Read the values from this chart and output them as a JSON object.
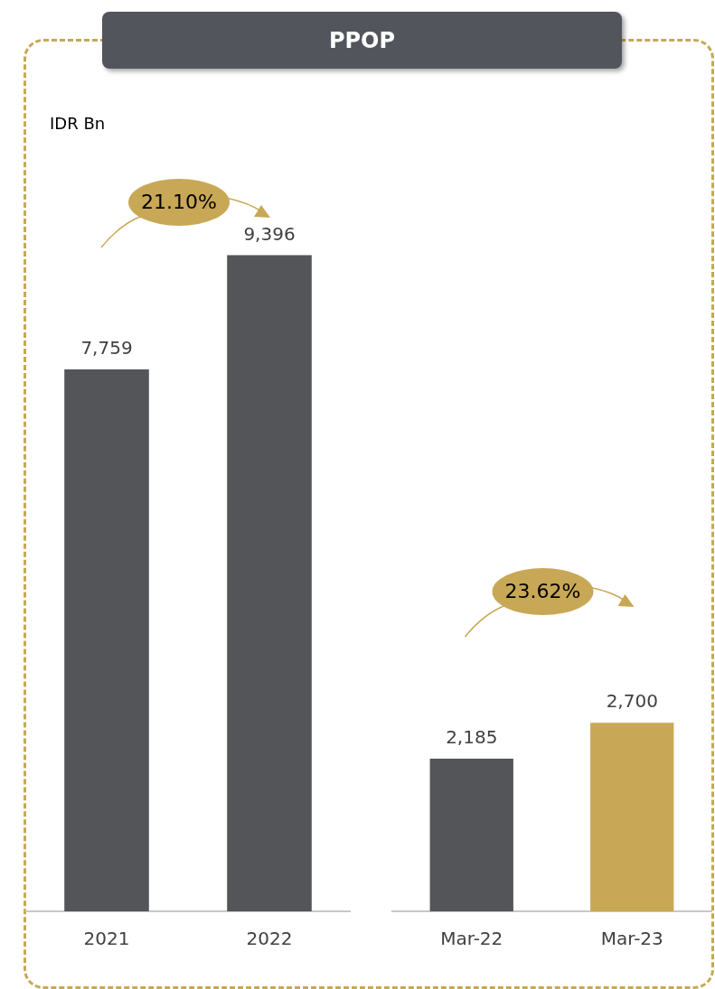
{
  "chart_data": [
    {
      "type": "bar",
      "title": "PPOP",
      "ylabel": "IDR Bn",
      "categories": [
        "2021",
        "2022"
      ],
      "values": [
        7759,
        9396
      ],
      "value_labels": [
        "7,759",
        "9,396"
      ],
      "colors": [
        "#545559",
        "#545559"
      ],
      "annotations": [
        "21.10%"
      ]
    },
    {
      "type": "bar",
      "categories": [
        "Mar-22",
        "Mar-23"
      ],
      "values": [
        2185,
        2700
      ],
      "value_labels": [
        "2,185",
        "2,700"
      ],
      "colors": [
        "#545559",
        "#c8a856"
      ],
      "annotations": [
        "23.62%"
      ]
    }
  ]
}
